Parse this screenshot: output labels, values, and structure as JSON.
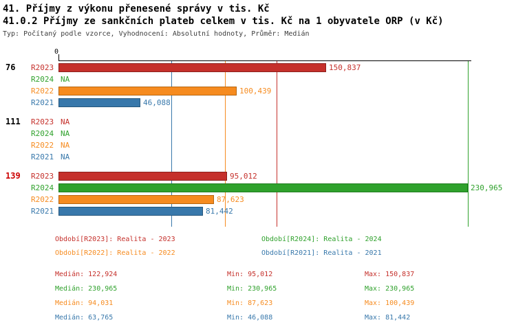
{
  "header": {
    "title1": "41. Příjmy z výkonu přenesené správy v tis. Kč",
    "title2": "41.0.2 Příjmy ze sankčních plateb celkem v tis. Kč na 1 obyvatele ORP (v Kč)",
    "meta": "Typ: Počítaný podle vzorce, Vyhodnocení: Absolutní hodnoty, Průměr: Medián"
  },
  "chart_data": {
    "type": "bar",
    "orientation": "horizontal",
    "title": "41. Příjmy z výkonu přenesené správy v tis. Kč",
    "subtitle": "41.0.2 Příjmy ze sankčních plateb celkem v tis. Kč na 1 obyvatele ORP (v Kč)",
    "axis": {
      "zero_label": "0",
      "min_value": 0,
      "max_value": 230965
    },
    "na_label": "NA",
    "row_order": [
      "R2023",
      "R2024",
      "R2022",
      "R2021"
    ],
    "series": [
      {
        "id": "R2023",
        "label": "R2023",
        "color": "#c5302b",
        "border": "#8c1f1c",
        "median": 122924,
        "min": 95012,
        "max": 150837
      },
      {
        "id": "R2024",
        "label": "R2024",
        "color": "#2fa12c",
        "border": "#1e7a1e",
        "median": 230965,
        "min": 230965,
        "max": 230965
      },
      {
        "id": "R2022",
        "label": "R2022",
        "color": "#f68b1f",
        "border": "#b5650f",
        "median": 94031,
        "min": 87623,
        "max": 100439
      },
      {
        "id": "R2021",
        "label": "R2021",
        "color": "#3878ab",
        "border": "#26567c",
        "median": 63765,
        "min": 46088,
        "max": 81442
      }
    ],
    "groups": [
      {
        "label": "76",
        "label_color": "#000000",
        "values": {
          "R2023": 150837,
          "R2024": null,
          "R2022": 100439,
          "R2021": 46088
        }
      },
      {
        "label": "111",
        "label_color": "#000000",
        "values": {
          "R2023": null,
          "R2024": null,
          "R2022": null,
          "R2021": null
        }
      },
      {
        "label": "139",
        "label_color": "#cc0000",
        "values": {
          "R2023": 95012,
          "R2024": 230965,
          "R2022": 87623,
          "R2021": 81442
        }
      }
    ]
  },
  "legend": {
    "items": [
      {
        "label": "Období[R2023]: Realita - 2023",
        "color": "#c5302b"
      },
      {
        "label": "Období[R2024]: Realita - 2024",
        "color": "#2fa12c"
      },
      {
        "label": "Období[R2022]: Realita - 2022",
        "color": "#f68b1f"
      },
      {
        "label": "Období[R2021]: Realita - 2021",
        "color": "#3878ab"
      }
    ]
  },
  "stats": {
    "rows": [
      {
        "color": "#c5302b",
        "median": "Medián: 122,924",
        "min": "Min: 95,012",
        "max": "Max: 150,837"
      },
      {
        "color": "#2fa12c",
        "median": "Medián: 230,965",
        "min": "Min: 230,965",
        "max": "Max: 230,965"
      },
      {
        "color": "#f68b1f",
        "median": "Medián: 94,031",
        "min": "Min: 87,623",
        "max": "Max: 100,439"
      },
      {
        "color": "#3878ab",
        "median": "Medián: 63,765",
        "min": "Min: 46,088",
        "max": "Max: 81,442"
      }
    ]
  }
}
